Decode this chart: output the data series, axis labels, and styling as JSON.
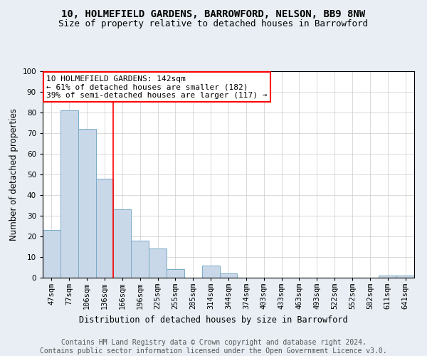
{
  "title": "10, HOLMEFIELD GARDENS, BARROWFORD, NELSON, BB9 8NW",
  "subtitle": "Size of property relative to detached houses in Barrowford",
  "xlabel": "Distribution of detached houses by size in Barrowford",
  "ylabel": "Number of detached properties",
  "categories": [
    "47sqm",
    "77sqm",
    "106sqm",
    "136sqm",
    "166sqm",
    "196sqm",
    "225sqm",
    "255sqm",
    "285sqm",
    "314sqm",
    "344sqm",
    "374sqm",
    "403sqm",
    "433sqm",
    "463sqm",
    "493sqm",
    "522sqm",
    "552sqm",
    "582sqm",
    "611sqm",
    "641sqm"
  ],
  "values": [
    23,
    81,
    72,
    48,
    33,
    18,
    14,
    4,
    0,
    6,
    2,
    0,
    0,
    0,
    0,
    0,
    0,
    0,
    0,
    1,
    1
  ],
  "bar_color": "#c8d8e8",
  "bar_edge_color": "#7aaac8",
  "highlight_line_index": 3,
  "highlight_line_color": "red",
  "annotation_line1": "10 HOLMEFIELD GARDENS: 142sqm",
  "annotation_line2": "← 61% of detached houses are smaller (182)",
  "annotation_line3": "39% of semi-detached houses are larger (117) →",
  "ylim": [
    0,
    100
  ],
  "yticks": [
    0,
    10,
    20,
    30,
    40,
    50,
    60,
    70,
    80,
    90,
    100
  ],
  "footer_text": "Contains HM Land Registry data © Crown copyright and database right 2024.\nContains public sector information licensed under the Open Government Licence v3.0.",
  "background_color": "#e8eef4",
  "plot_bg_color": "#ffffff",
  "title_fontsize": 10,
  "subtitle_fontsize": 9,
  "axis_label_fontsize": 8.5,
  "tick_fontsize": 7.5,
  "annotation_fontsize": 8,
  "footer_fontsize": 7
}
